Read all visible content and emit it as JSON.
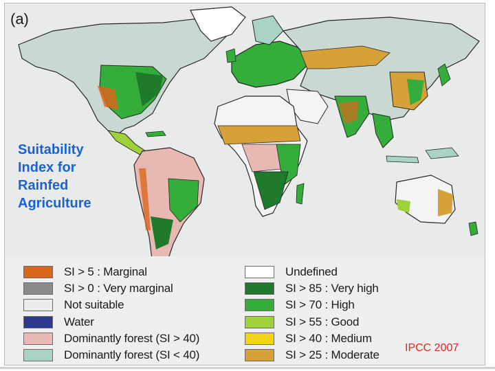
{
  "panel_label": "(a)",
  "side_title_lines": [
    "Suitability",
    "Index for",
    "Rainfed",
    "Agriculture"
  ],
  "credit": "IPCC 2007",
  "colors": {
    "ocean": "#ececec",
    "land_base": "#f2f2f2",
    "border_line": "#262626",
    "title_blue": "#1b62d8",
    "credit_red": "#e2261d"
  },
  "legend": {
    "left": [
      {
        "label": "SI > 5 : Marginal",
        "color": "#d9661c"
      },
      {
        "label": "SI > 0 : Very marginal",
        "color": "#8a8a88"
      },
      {
        "label": "Not suitable",
        "color": "#ececec"
      },
      {
        "label": "Water",
        "color": "#2e3a8e"
      },
      {
        "label": "Dominantly forest (SI > 40)",
        "color": "#e8b9b3"
      },
      {
        "label": "Dominantly forest (SI < 40)",
        "color": "#a9d3c6"
      }
    ],
    "right": [
      {
        "label": "Undefined",
        "color": "#ffffff"
      },
      {
        "label": "SI > 85 : Very high",
        "color": "#1f7a2c"
      },
      {
        "label": "SI > 70 : High",
        "color": "#34ad3a"
      },
      {
        "label": "SI > 55 : Good",
        "color": "#9fd23a"
      },
      {
        "label": "SI > 40 : Medium",
        "color": "#f2d21b"
      },
      {
        "label": "SI > 25 : Moderate",
        "color": "#d7a13a"
      }
    ]
  }
}
